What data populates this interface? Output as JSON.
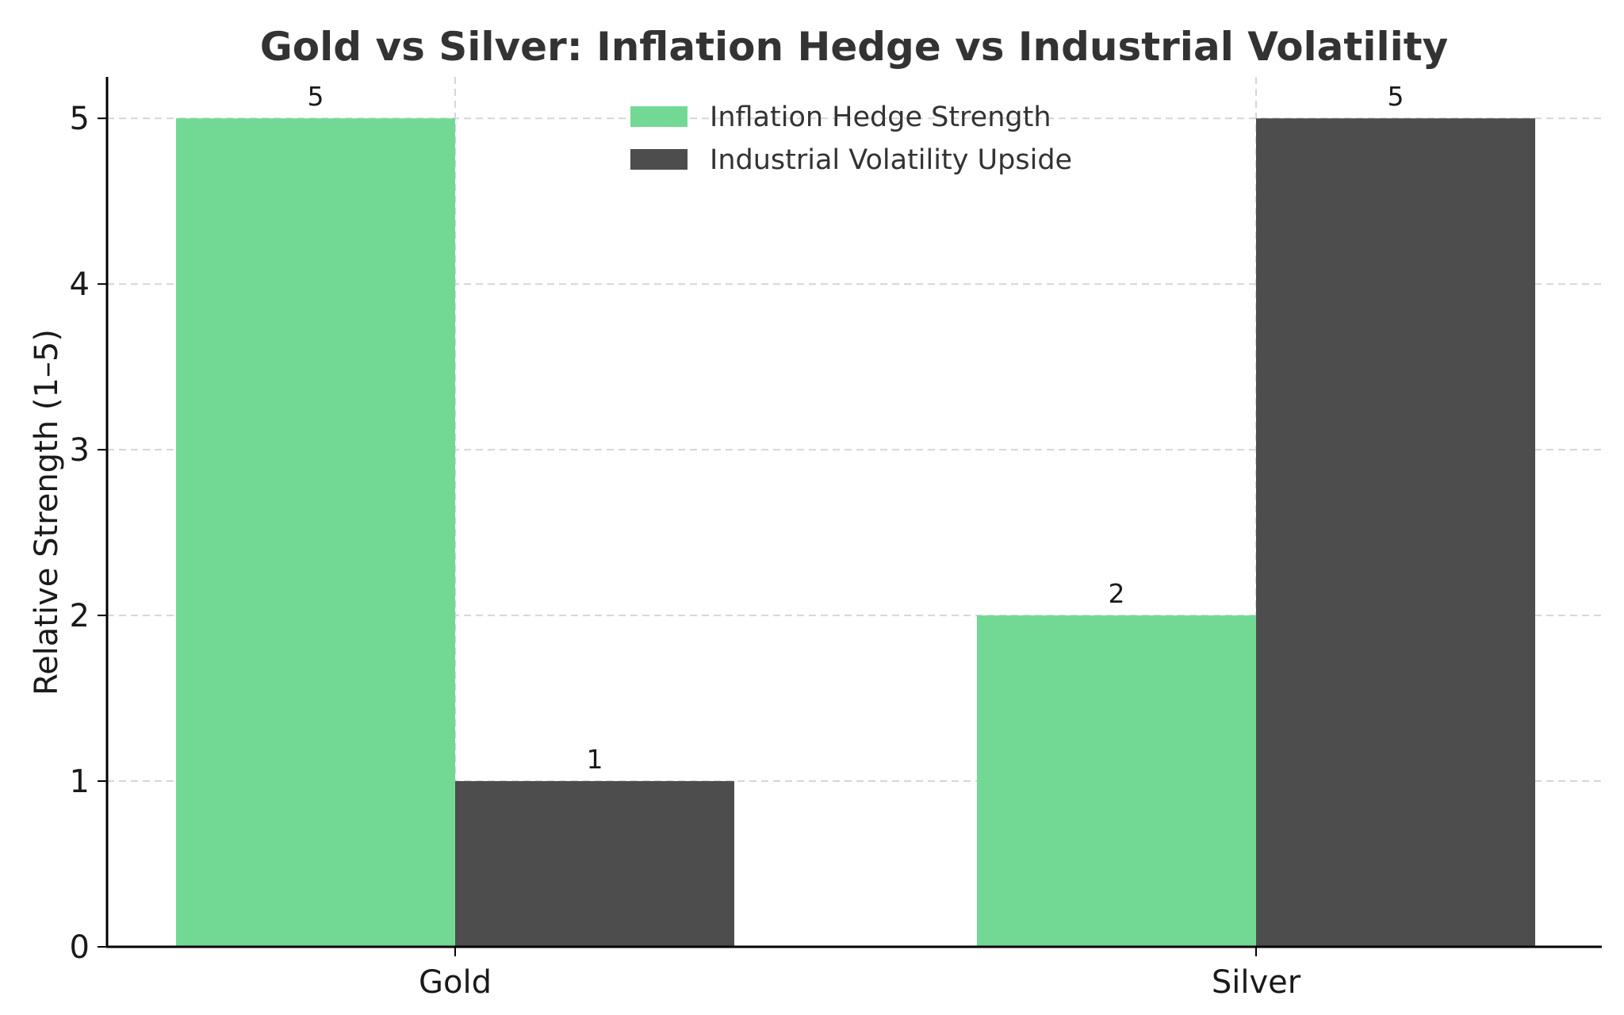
{
  "chart_data": {
    "type": "bar",
    "title": "Gold vs Silver: Inflation Hedge vs Industrial Volatility",
    "xlabel": "",
    "ylabel": "Relative Strength (1–5)",
    "categories": [
      "Gold",
      "Silver"
    ],
    "series": [
      {
        "name": "Inflation Hedge Strength",
        "values": [
          5,
          2
        ],
        "color": "#72d995"
      },
      {
        "name": "Industrial Volatility Upside",
        "values": [
          1,
          5
        ],
        "color": "#4d4d4d"
      }
    ],
    "ylim": [
      0,
      5.25
    ],
    "yticks": [
      0,
      1,
      2,
      3,
      4,
      5
    ],
    "grid": true,
    "legend_position": "top-center",
    "data_labels": true
  }
}
